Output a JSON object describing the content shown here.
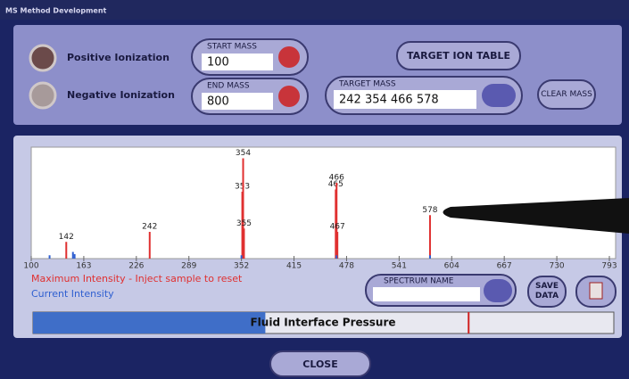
{
  "window_title": "MS Method Development",
  "ionization": {
    "positive": "Positive Ionization",
    "negative": "Negative Ionization"
  },
  "start_mass": {
    "label": "START MASS",
    "value": "100"
  },
  "end_mass": {
    "label": "END MASS",
    "value": "800"
  },
  "target_ion_table": "TARGET ION TABLE",
  "target_mass": {
    "label": "TARGET MASS",
    "value": "242 354 466 578"
  },
  "clear_mass": "CLEAR MASS",
  "chart_data": {
    "type": "spectrum",
    "xlim": [
      100,
      793
    ],
    "ylim": [
      0,
      100
    ],
    "xticks": [
      100,
      163,
      226,
      289,
      352,
      415,
      478,
      541,
      604,
      667,
      730,
      793
    ],
    "series": [
      {
        "name": "Maximum Intensity - Inject sample to reset",
        "color": "#e03030",
        "x": [
          142,
          242,
          353,
          354,
          355,
          465,
          466,
          467,
          578
        ],
        "values": [
          15,
          24,
          60,
          90,
          27,
          62,
          68,
          24,
          39
        ]
      },
      {
        "name": "Current Intensity",
        "color": "#2f5fd0",
        "x": [
          122,
          150,
          152,
          352,
          466,
          578
        ],
        "values": [
          3,
          6,
          4,
          3,
          3,
          3
        ]
      }
    ]
  },
  "spectrum_name": "SPECTRUM NAME",
  "save_data": "SAVE DATA",
  "pressure": {
    "label": "Fluid Interface Pressure",
    "value": 40,
    "limit": 75
  },
  "close": "CLOSE"
}
